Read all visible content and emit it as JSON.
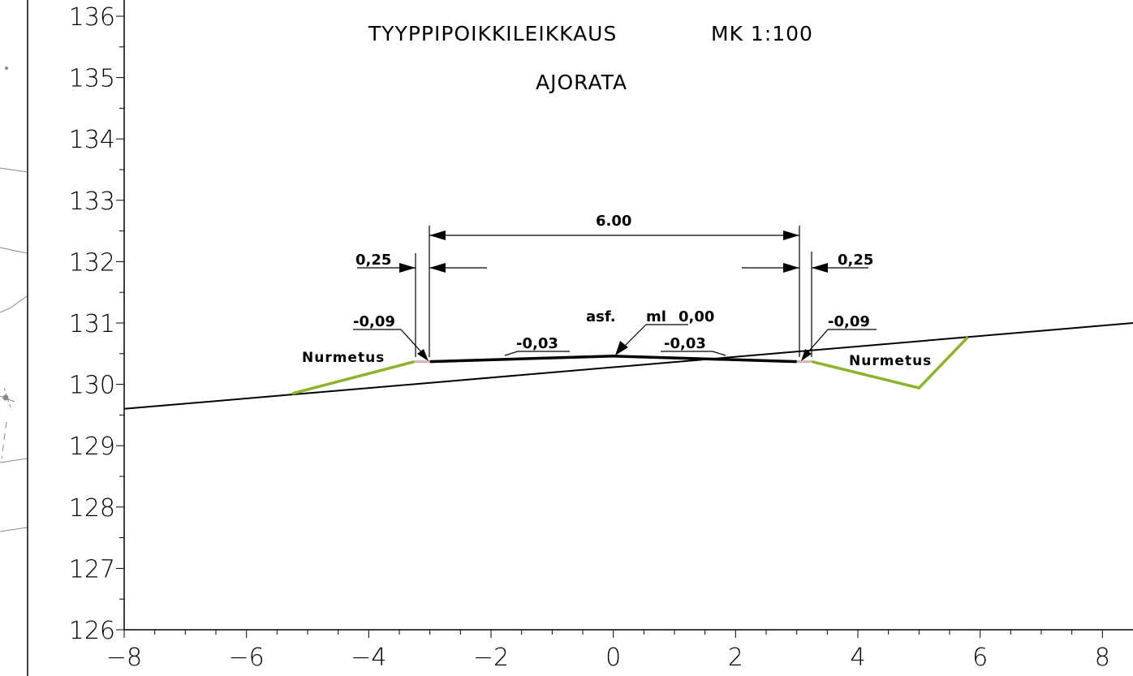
{
  "drawing": {
    "title": "TYYPPIPOIKKILEIKKAUS",
    "scale": "MK  1:100",
    "subtitle": "AJORATA",
    "width_dim": "6.00",
    "shoulder_left": "0,25",
    "shoulder_right": "0,25",
    "edge_left_height": "-0,09",
    "edge_right_height": "-0,09",
    "slope_left": "-0,03",
    "slope_right": "-0,03",
    "surface": "asf.",
    "centerline": "ml",
    "centerline_value": "0,00",
    "area_left": "Nurmetus",
    "area_right": "Nurmetus",
    "colors": {
      "line": "#000000",
      "grass": "#8db32b",
      "shoulder": "#d9b3b3"
    }
  },
  "chart_data": {
    "type": "line",
    "x_ticks": [
      "−8",
      "−6",
      "−4",
      "−2",
      "0",
      "2",
      "4",
      "6",
      "8"
    ],
    "y_ticks": [
      "126",
      "127",
      "128",
      "129",
      "130",
      "131",
      "132",
      "133",
      "134",
      "135",
      "136"
    ],
    "xlim": [
      -8.0,
      8.5
    ],
    "ylim": [
      126,
      136.2
    ],
    "series": [
      {
        "key": "ground",
        "points": [
          [
            -8.0,
            129.6
          ],
          [
            8.5,
            131.0
          ]
        ]
      },
      {
        "key": "road",
        "points": [
          [
            -3.0,
            130.37
          ],
          [
            0.0,
            130.46
          ],
          [
            3.0,
            130.37
          ]
        ]
      },
      {
        "key": "shoulder_l",
        "points": [
          [
            -3.25,
            130.37
          ],
          [
            -3.0,
            130.37
          ]
        ]
      },
      {
        "key": "shoulder_r",
        "points": [
          [
            3.0,
            130.37
          ],
          [
            3.25,
            130.37
          ]
        ]
      },
      {
        "key": "grass_l",
        "points": [
          [
            -5.25,
            129.85
          ],
          [
            -3.25,
            130.37
          ]
        ]
      },
      {
        "key": "grass_r",
        "points": [
          [
            3.25,
            130.37
          ],
          [
            5.0,
            129.94
          ],
          [
            5.8,
            130.77
          ]
        ]
      }
    ]
  }
}
